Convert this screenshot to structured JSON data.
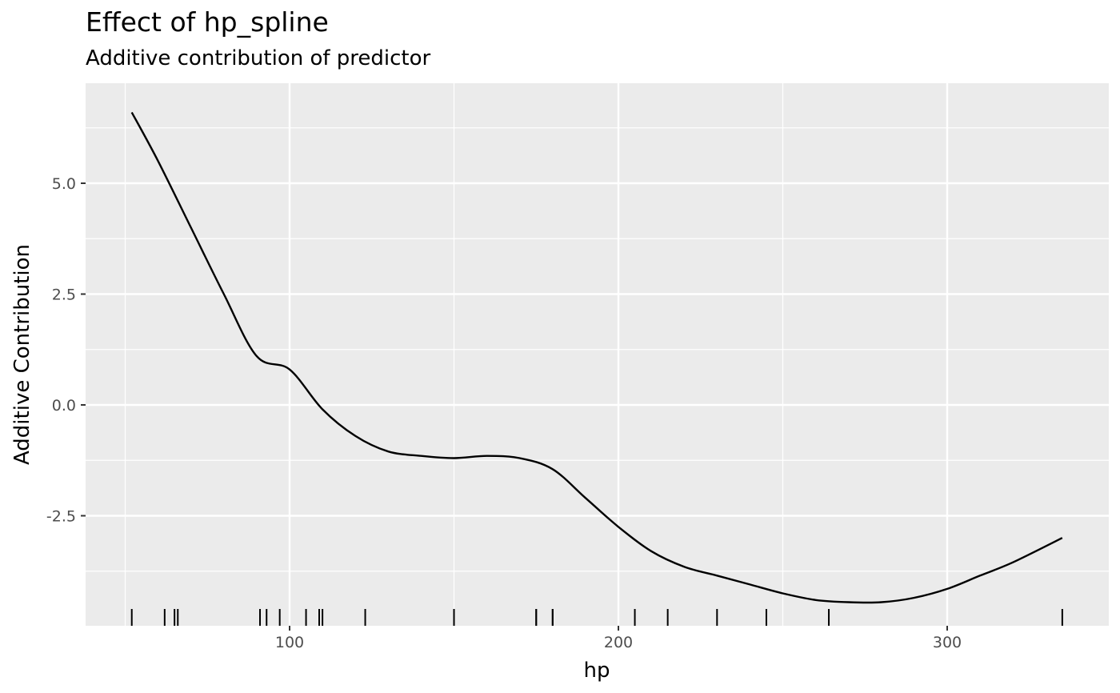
{
  "chart_data": {
    "type": "line",
    "title": "Effect of hp_spline",
    "subtitle": "Additive contribution of predictor",
    "xlabel": "hp",
    "ylabel": "Additive Contribution",
    "xlim": [
      38,
      340
    ],
    "ylim": [
      -5.0,
      7.3
    ],
    "x_ticks": [
      100,
      200,
      300
    ],
    "x_tick_labels": [
      "100",
      "200",
      "300"
    ],
    "y_ticks": [
      5.0,
      2.5,
      0.0,
      -2.5
    ],
    "y_tick_labels": [
      "5.0",
      "2.5",
      "0.0",
      "-2.5"
    ],
    "grid": true,
    "series": [
      {
        "x": [
          52,
          60,
          70,
          80,
          90,
          100,
          110,
          120,
          130,
          140,
          150,
          160,
          170,
          180,
          190,
          200,
          210,
          220,
          230,
          240,
          250,
          260,
          270,
          280,
          290,
          300,
          310,
          320,
          335
        ],
        "y": [
          6.6,
          5.5,
          4.0,
          2.5,
          1.1,
          0.8,
          -0.1,
          -0.7,
          -1.05,
          -1.15,
          -1.2,
          -1.15,
          -1.2,
          -1.45,
          -2.1,
          -2.75,
          -3.3,
          -3.65,
          -3.85,
          -4.05,
          -4.25,
          -4.4,
          -4.45,
          -4.45,
          -4.35,
          -4.15,
          -3.85,
          -3.55,
          -3.0
        ]
      }
    ],
    "rug_x": [
      52,
      62,
      65,
      66,
      91,
      93,
      97,
      105,
      109,
      110,
      123,
      150,
      175,
      175,
      180,
      180,
      205,
      215,
      230,
      245,
      264,
      335
    ]
  },
  "colors": {
    "panel_bg": "#ebebeb",
    "grid_major": "#ffffff",
    "line": "#000000",
    "rug": "#000000",
    "tick_text": "#4d4d4d"
  }
}
